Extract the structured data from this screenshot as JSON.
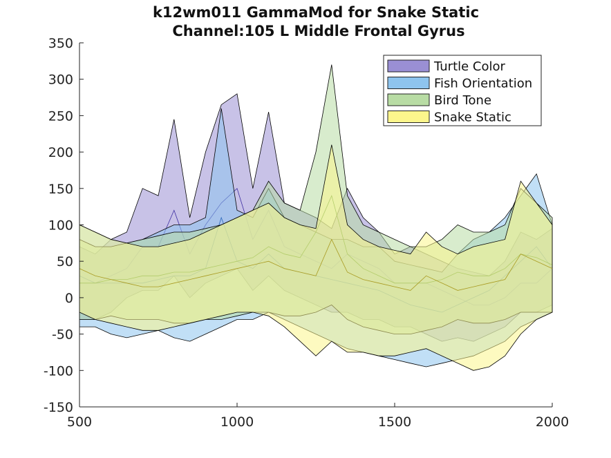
{
  "chart_data": {
    "type": "area",
    "title": "k12wm011 GammaMod for Snake Static",
    "subtitle": "Channel:105 L Middle Frontal Gyrus",
    "xlabel": "",
    "ylabel": "",
    "xlim": [
      500,
      2000
    ],
    "ylim": [
      -150,
      350
    ],
    "xticks": [
      500,
      1000,
      1500,
      2000
    ],
    "yticks": [
      -150,
      -100,
      -50,
      0,
      50,
      100,
      150,
      200,
      250,
      300,
      350
    ],
    "grid": false,
    "legend_position": "top-right",
    "x": [
      500,
      550,
      600,
      650,
      700,
      750,
      800,
      850,
      900,
      950,
      1000,
      1050,
      1100,
      1150,
      1200,
      1250,
      1300,
      1350,
      1400,
      1450,
      1500,
      1550,
      1600,
      1650,
      1700,
      1750,
      1800,
      1850,
      1900,
      1950,
      2000
    ],
    "series": [
      {
        "name": "Turtle Color",
        "color": "#9a8fd4",
        "upper": [
          70,
          60,
          80,
          90,
          150,
          140,
          245,
          110,
          200,
          265,
          280,
          150,
          255,
          130,
          120,
          110,
          95,
          150,
          110,
          90,
          60,
          70,
          60,
          50,
          40,
          35,
          30,
          50,
          90,
          80,
          95
        ],
        "mean": [
          20,
          20,
          30,
          40,
          70,
          70,
          120,
          60,
          100,
          130,
          150,
          80,
          120,
          70,
          60,
          50,
          40,
          60,
          50,
          40,
          20,
          20,
          20,
          10,
          0,
          -10,
          -10,
          0,
          20,
          20,
          40
        ],
        "lower": [
          -30,
          -30,
          -20,
          0,
          10,
          10,
          30,
          0,
          20,
          30,
          40,
          10,
          30,
          10,
          0,
          -10,
          -20,
          -20,
          -30,
          -30,
          -40,
          -40,
          -50,
          -60,
          -55,
          -60,
          -50,
          -40,
          -20,
          -20,
          -10
        ]
      },
      {
        "name": "Fish Orientation",
        "color": "#8ec4ee",
        "upper": [
          100,
          90,
          80,
          75,
          80,
          90,
          100,
          100,
          110,
          260,
          120,
          110,
          150,
          110,
          100,
          90,
          80,
          80,
          70,
          70,
          50,
          45,
          40,
          35,
          60,
          80,
          90,
          110,
          140,
          170,
          100
        ],
        "mean": [
          30,
          20,
          20,
          20,
          20,
          25,
          30,
          30,
          40,
          110,
          50,
          40,
          60,
          40,
          35,
          30,
          25,
          20,
          15,
          10,
          0,
          -10,
          -15,
          -20,
          -10,
          0,
          10,
          30,
          50,
          70,
          40
        ],
        "lower": [
          -40,
          -40,
          -50,
          -55,
          -50,
          -45,
          -55,
          -60,
          -50,
          -40,
          -30,
          -30,
          -20,
          -30,
          -40,
          -50,
          -60,
          -70,
          -75,
          -80,
          -85,
          -90,
          -95,
          -90,
          -85,
          -80,
          -70,
          -60,
          -40,
          -30,
          -20
        ]
      },
      {
        "name": "Bird Tone",
        "color": "#b8dca4",
        "upper": [
          80,
          70,
          70,
          75,
          80,
          85,
          90,
          90,
          95,
          100,
          110,
          120,
          160,
          130,
          120,
          200,
          320,
          140,
          100,
          90,
          80,
          70,
          70,
          80,
          100,
          90,
          90,
          100,
          150,
          130,
          110
        ],
        "mean": [
          20,
          20,
          25,
          25,
          30,
          30,
          35,
          35,
          40,
          45,
          50,
          55,
          70,
          60,
          55,
          90,
          140,
          60,
          40,
          30,
          20,
          20,
          20,
          25,
          35,
          30,
          30,
          40,
          60,
          55,
          45
        ],
        "lower": [
          -30,
          -30,
          -25,
          -30,
          -30,
          -30,
          -35,
          -35,
          -30,
          -30,
          -25,
          -20,
          -20,
          -25,
          -25,
          -20,
          -10,
          -30,
          -40,
          -45,
          -50,
          -50,
          -45,
          -40,
          -30,
          -35,
          -35,
          -30,
          -20,
          -20,
          -20
        ]
      },
      {
        "name": "Snake Static",
        "color": "#fcf58c",
        "upper": [
          100,
          90,
          80,
          75,
          70,
          70,
          75,
          80,
          90,
          100,
          110,
          120,
          130,
          110,
          100,
          95,
          210,
          100,
          80,
          70,
          65,
          60,
          90,
          70,
          60,
          70,
          75,
          80,
          160,
          130,
          100
        ],
        "mean": [
          40,
          30,
          25,
          20,
          15,
          15,
          20,
          25,
          30,
          35,
          40,
          45,
          50,
          40,
          35,
          30,
          80,
          35,
          25,
          20,
          15,
          10,
          30,
          20,
          10,
          15,
          20,
          25,
          60,
          50,
          40
        ],
        "lower": [
          -20,
          -30,
          -35,
          -40,
          -45,
          -45,
          -40,
          -35,
          -30,
          -25,
          -20,
          -20,
          -25,
          -40,
          -60,
          -80,
          -60,
          -75,
          -75,
          -80,
          -80,
          -75,
          -70,
          -80,
          -90,
          -100,
          -95,
          -80,
          -50,
          -30,
          -20
        ]
      }
    ]
  }
}
